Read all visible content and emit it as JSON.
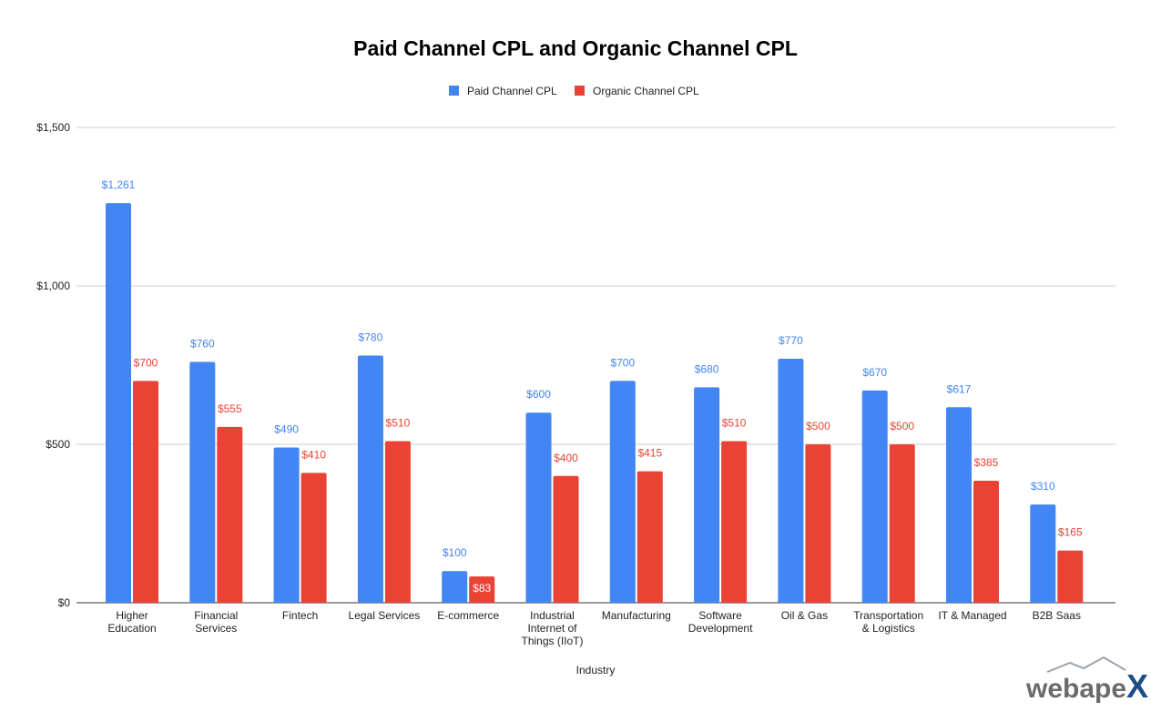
{
  "colors": {
    "paid": "#4285f4",
    "organic": "#ea4335",
    "grid": "#cccccc",
    "axis": "#333333",
    "logo_text": "#6b6b6b",
    "logo_accent": "#1a4d8c"
  },
  "logo": {
    "text": "webapeX"
  },
  "chart_data": {
    "type": "bar",
    "title": "Paid Channel CPL and Organic Channel CPL",
    "xlabel": "Industry",
    "ylabel": "",
    "legend_position": "top",
    "grid": true,
    "ylim": [
      0,
      1500
    ],
    "yticks": [
      0,
      500,
      1000,
      1500
    ],
    "ytick_labels": [
      "$0",
      "$500",
      "$1,000",
      "$1,500"
    ],
    "categories": [
      [
        "Higher",
        "Education"
      ],
      [
        "Financial",
        "Services"
      ],
      [
        "Fintech"
      ],
      [
        "Legal Services"
      ],
      [
        "E-commerce"
      ],
      [
        "Industrial",
        "Internet of",
        "Things (IIoT)"
      ],
      [
        "Manufacturing"
      ],
      [
        "Software",
        "Development"
      ],
      [
        "Oil & Gas"
      ],
      [
        "Transportation",
        "& Logistics"
      ],
      [
        "IT & Managed"
      ],
      [
        "B2B Saas"
      ]
    ],
    "series": [
      {
        "name": "Paid Channel CPL",
        "color": "#4285f4",
        "values": [
          1261,
          760,
          490,
          780,
          100,
          600,
          700,
          680,
          770,
          670,
          617,
          310
        ],
        "labels": [
          "$1,261",
          "$760",
          "$490",
          "$780",
          "$100",
          "$600",
          "$700",
          "$680",
          "$770",
          "$670",
          "$617",
          "$310"
        ]
      },
      {
        "name": "Organic Channel CPL",
        "color": "#ea4335",
        "values": [
          700,
          555,
          410,
          510,
          83,
          400,
          415,
          510,
          500,
          500,
          385,
          165
        ],
        "labels": [
          "$700",
          "$555",
          "$410",
          "$510",
          "$83",
          "$400",
          "$415",
          "$510",
          "$500",
          "$500",
          "$385",
          "$165"
        ]
      }
    ]
  }
}
